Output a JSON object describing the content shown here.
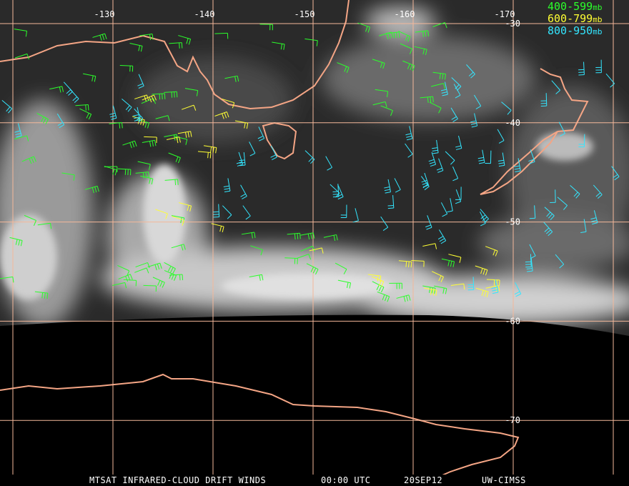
{
  "grid": {
    "longitudes": [
      "-130",
      "-140",
      "-150",
      "-160",
      "-170"
    ],
    "latitudes": [
      "-30",
      "-40",
      "-50",
      "-60",
      "-70"
    ]
  },
  "legend": [
    {
      "range": "400-599",
      "unit": "mb",
      "color": "#2bff2b"
    },
    {
      "range": "600-799",
      "unit": "mb",
      "color": "#ffff33"
    },
    {
      "range": "800-950",
      "unit": "mb",
      "color": "#33e6ff"
    }
  ],
  "footer": {
    "product": "MTSAT INFRARED-CLOUD DRIFT WINDS",
    "time": "00:00 UTC",
    "date": "20SEP12",
    "source": "UW-CIMSS"
  }
}
